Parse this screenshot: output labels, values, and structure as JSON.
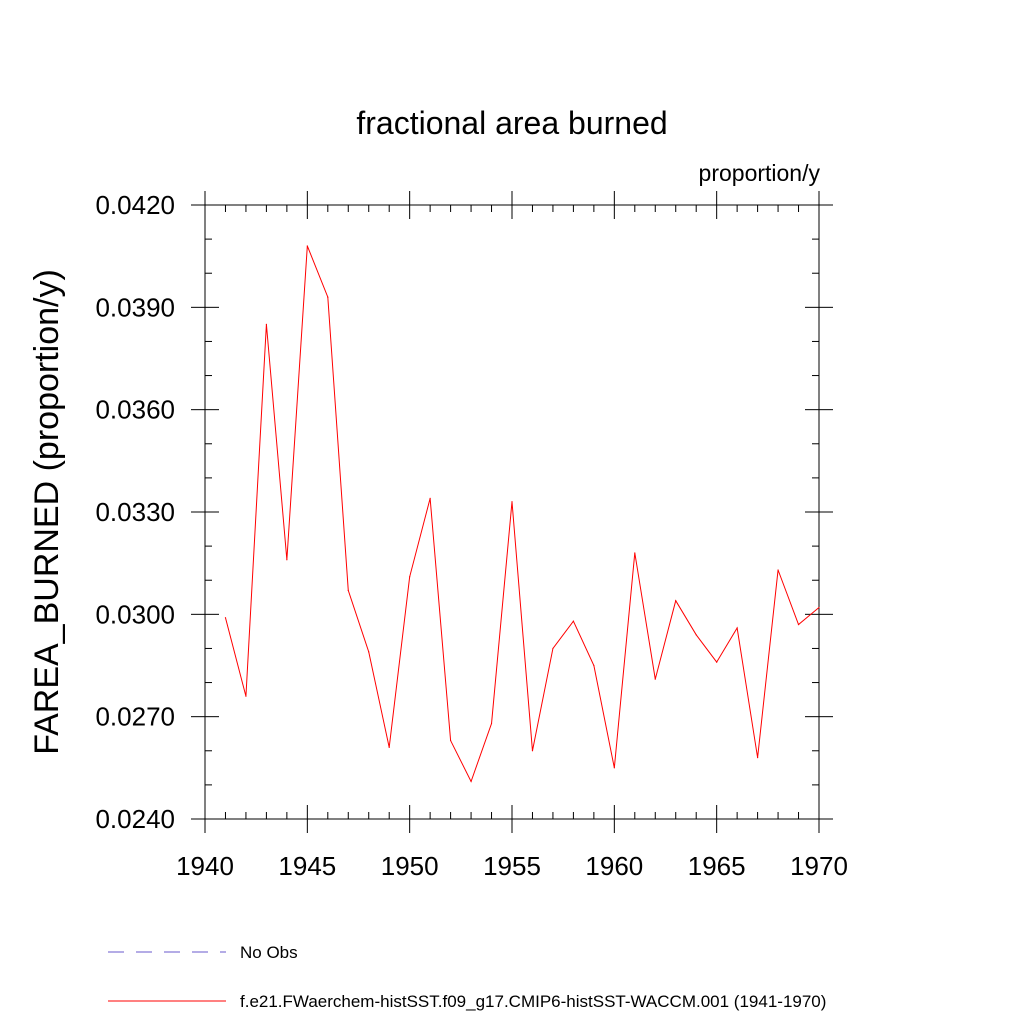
{
  "chart_data": {
    "type": "line",
    "title": "fractional area burned",
    "units": "proportion/y",
    "xlabel": "",
    "ylabel": "FAREA_BURNED  (proportion/y)",
    "xlim": [
      1940,
      1970
    ],
    "ylim": [
      0.024,
      0.042
    ],
    "x_ticks": [
      1940,
      1945,
      1950,
      1955,
      1960,
      1965,
      1970
    ],
    "x_tick_labels": [
      "1940",
      "1945",
      "1950",
      "1955",
      "1960",
      "1965",
      "1970"
    ],
    "y_ticks": [
      0.024,
      0.027,
      0.03,
      0.033,
      0.036,
      0.039,
      0.042
    ],
    "y_tick_labels": [
      "0.0240",
      "0.0270",
      "0.0300",
      "0.0330",
      "0.0360",
      "0.0390",
      "0.0420"
    ],
    "x_minor_step": 1,
    "y_minor_step": 0.001,
    "grid": false,
    "legend_position": "bottom",
    "series": [
      {
        "name": "No Obs",
        "color": "#6a5acd",
        "dash": "dashed",
        "x": [],
        "y": []
      },
      {
        "name": "f.e21.FWaerchem-histSST.f09_g17.CMIP6-histSST-WACCM.001 (1941-1970)",
        "color": "#ff0000",
        "dash": "solid",
        "x": [
          1941,
          1942,
          1943,
          1944,
          1945,
          1946,
          1947,
          1948,
          1949,
          1950,
          1951,
          1952,
          1953,
          1954,
          1955,
          1956,
          1957,
          1958,
          1959,
          1960,
          1961,
          1962,
          1963,
          1964,
          1965,
          1966,
          1967,
          1968,
          1969,
          1970
        ],
        "y": [
          0.0299,
          0.0276,
          0.0385,
          0.0316,
          0.0408,
          0.0393,
          0.0307,
          0.0289,
          0.0261,
          0.0311,
          0.0334,
          0.0263,
          0.0251,
          0.0268,
          0.0333,
          0.026,
          0.029,
          0.0298,
          0.0285,
          0.0255,
          0.0318,
          0.0281,
          0.0304,
          0.0294,
          0.0286,
          0.0296,
          0.0258,
          0.0313,
          0.0297,
          0.0302
        ]
      }
    ]
  }
}
